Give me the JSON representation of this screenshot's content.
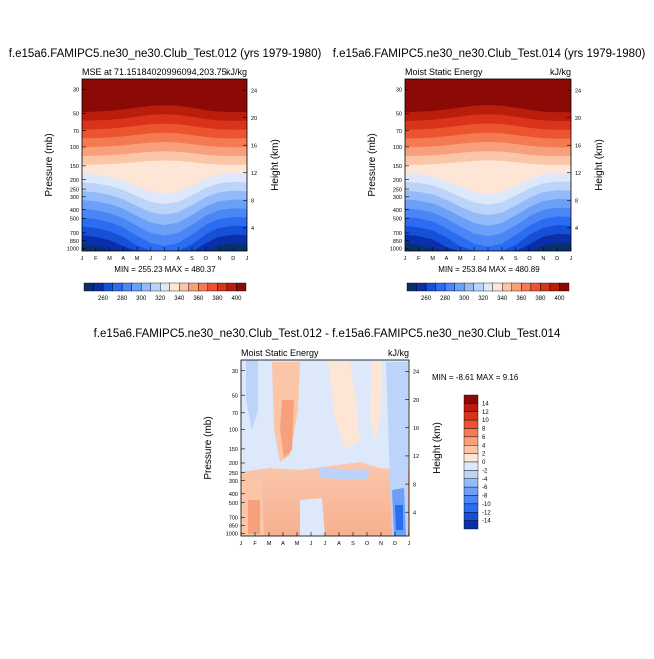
{
  "chart_data": [
    {
      "type": "heatmap",
      "title": "f.e15a6.FAMIPC5.ne30_ne30.Club_Test.012 (yrs 1979-1980)",
      "subtitle_left": "MSE at 71.15184020996094,203.75",
      "subtitle_right": "kJ/kg",
      "xlabel": "",
      "ylabel": "Pressure (mb)",
      "ylabel_right": "Height (km)",
      "x_ticks": [
        "J",
        "F",
        "M",
        "A",
        "M",
        "J",
        "J",
        "A",
        "S",
        "O",
        "N",
        "D",
        "J"
      ],
      "y_ticks": [
        "30",
        "50",
        "70",
        "100",
        "150",
        "200",
        "250",
        "300",
        "400",
        "500",
        "700",
        "850",
        "1000"
      ],
      "y_ticks_right": [
        "24",
        "20",
        "16",
        "12",
        "8",
        "4"
      ],
      "stats": "MIN = 255.23 MAX = 480.37",
      "colorbar_labels": [
        "260",
        "280",
        "300",
        "320",
        "340",
        "360",
        "380",
        "400"
      ],
      "levels": [
        250,
        260,
        270,
        280,
        290,
        300,
        310,
        320,
        330,
        340,
        350,
        360,
        370,
        380,
        390,
        400,
        410
      ],
      "colors": [
        "#08306b",
        "#0a2fa8",
        "#1550d6",
        "#2b6cf0",
        "#4a86f5",
        "#6c9ff7",
        "#93bbf9",
        "#bcd3fa",
        "#dde8fb",
        "#fde6d6",
        "#fbc6a8",
        "#f8a07c",
        "#f47a52",
        "#ec5430",
        "#d9341a",
        "#b81d0e",
        "#8c0a05"
      ],
      "seasonal_values": [
        [
          0.0,
          0.35
        ],
        [
          0.08,
          0.37
        ],
        [
          0.17,
          0.42
        ],
        [
          0.25,
          0.5
        ],
        [
          0.33,
          0.62
        ],
        [
          0.42,
          0.74
        ],
        [
          0.5,
          0.78
        ],
        [
          0.58,
          0.74
        ],
        [
          0.67,
          0.6
        ],
        [
          0.75,
          0.46
        ],
        [
          0.83,
          0.37
        ],
        [
          0.92,
          0.34
        ],
        [
          1.0,
          0.35
        ]
      ]
    },
    {
      "type": "heatmap",
      "title": "f.e15a6.FAMIPC5.ne30_ne30.Club_Test.014 (yrs 1979-1980)",
      "subtitle_left": "Moist Static Energy",
      "subtitle_right": "kJ/kg",
      "xlabel": "",
      "ylabel": "Pressure (mb)",
      "ylabel_right": "Height (km)",
      "x_ticks": [
        "J",
        "F",
        "M",
        "A",
        "M",
        "J",
        "J",
        "A",
        "S",
        "O",
        "N",
        "D",
        "J"
      ],
      "y_ticks": [
        "30",
        "50",
        "70",
        "100",
        "150",
        "200",
        "250",
        "300",
        "400",
        "500",
        "700",
        "850",
        "1000"
      ],
      "y_ticks_right": [
        "24",
        "20",
        "16",
        "12",
        "8",
        "4"
      ],
      "stats": "MIN = 253.84 MAX = 480.89",
      "colorbar_labels": [
        "260",
        "280",
        "300",
        "320",
        "340",
        "360",
        "380",
        "400"
      ],
      "levels": [
        250,
        260,
        270,
        280,
        290,
        300,
        310,
        320,
        330,
        340,
        350,
        360,
        370,
        380,
        390,
        400,
        410
      ],
      "colors": [
        "#08306b",
        "#0a2fa8",
        "#1550d6",
        "#2b6cf0",
        "#4a86f5",
        "#6c9ff7",
        "#93bbf9",
        "#bcd3fa",
        "#dde8fb",
        "#fde6d6",
        "#fbc6a8",
        "#f8a07c",
        "#f47a52",
        "#ec5430",
        "#d9341a",
        "#b81d0e",
        "#8c0a05"
      ],
      "seasonal_values": [
        [
          0.0,
          0.34
        ],
        [
          0.08,
          0.36
        ],
        [
          0.17,
          0.41
        ],
        [
          0.25,
          0.51
        ],
        [
          0.33,
          0.63
        ],
        [
          0.42,
          0.75
        ],
        [
          0.5,
          0.79
        ],
        [
          0.58,
          0.75
        ],
        [
          0.67,
          0.61
        ],
        [
          0.75,
          0.47
        ],
        [
          0.83,
          0.37
        ],
        [
          0.92,
          0.33
        ],
        [
          1.0,
          0.34
        ]
      ]
    },
    {
      "type": "heatmap",
      "title": "f.e15a6.FAMIPC5.ne30_ne30.Club_Test.012 - f.e15a6.FAMIPC5.ne30_ne30.Club_Test.014",
      "subtitle_left": "Moist Static Energy",
      "subtitle_right": "kJ/kg",
      "xlabel": "",
      "ylabel": "Pressure (mb)",
      "ylabel_right": "Height (km)",
      "x_ticks": [
        "J",
        "F",
        "M",
        "A",
        "M",
        "J",
        "J",
        "A",
        "S",
        "O",
        "N",
        "D",
        "J"
      ],
      "y_ticks": [
        "30",
        "50",
        "70",
        "100",
        "150",
        "200",
        "250",
        "300",
        "400",
        "500",
        "700",
        "850",
        "1000"
      ],
      "y_ticks_right": [
        "24",
        "20",
        "16",
        "12",
        "8",
        "4"
      ],
      "stats": "MIN =  -8.61 MAX =   9.16",
      "colorbar_labels": [
        "14",
        "12",
        "10",
        "8",
        "6",
        "4",
        "2",
        "0",
        "-2",
        "-4",
        "-6",
        "-8",
        "-10",
        "-12",
        "-14"
      ],
      "colors_top_to_bottom": [
        "#8c0a05",
        "#b81d0e",
        "#d9341a",
        "#ec5430",
        "#f47a52",
        "#f8a07c",
        "#fbc6a8",
        "#fde6d6",
        "#dde8fb",
        "#bcd3fa",
        "#93bbf9",
        "#6c9ff7",
        "#4a86f5",
        "#2b6cf0",
        "#1550d6",
        "#0a2fa8"
      ]
    }
  ]
}
